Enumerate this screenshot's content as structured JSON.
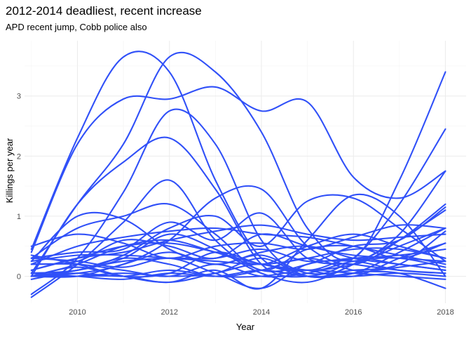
{
  "chart_data": {
    "type": "line",
    "title": "2012-2014 deadliest, recent increase",
    "subtitle": "APD recent jump, Cobb police also",
    "xlabel": "Year",
    "ylabel": "Killings per year",
    "xlim": [
      2008.85,
      2018.45
    ],
    "ylim": [
      -0.45,
      3.92
    ],
    "x_ticks": [
      2010,
      2012,
      2014,
      2016,
      2018
    ],
    "x_tick_labels": [
      "2010",
      "2012",
      "2014",
      "2016",
      "2018"
    ],
    "y_ticks": [
      0,
      1,
      2,
      3
    ],
    "y_tick_labels": [
      "0",
      "1",
      "2",
      "3"
    ],
    "grid": true,
    "legend": "none",
    "line_color": "#3050f8",
    "x": [
      2009,
      2010,
      2011,
      2012,
      2013,
      2014,
      2015,
      2016,
      2017,
      2018
    ],
    "series": [
      {
        "values": [
          0.45,
          2.3,
          3.65,
          3.4,
          1.6,
          0.3,
          0.1,
          0.3,
          0.2,
          0.1
        ]
      },
      {
        "values": [
          0.4,
          2.2,
          2.95,
          2.95,
          3.15,
          2.75,
          2.9,
          1.65,
          1.3,
          1.75
        ]
      },
      {
        "values": [
          0.05,
          1.2,
          2.2,
          3.65,
          3.4,
          2.4,
          0.8,
          0.3,
          1.6,
          3.4
        ]
      },
      {
        "values": [
          0.0,
          1.2,
          1.9,
          2.3,
          1.45,
          0.2,
          0.0,
          0.3,
          1.2,
          2.45
        ]
      },
      {
        "values": [
          -0.3,
          0.3,
          1.4,
          2.75,
          2.2,
          0.6,
          0.0,
          0.2,
          0.7,
          1.75
        ]
      },
      {
        "values": [
          -0.35,
          0.2,
          0.9,
          1.6,
          0.6,
          0.1,
          0.2,
          0.5,
          0.6,
          1.15
        ]
      },
      {
        "values": [
          0.25,
          1.0,
          0.95,
          0.45,
          0.2,
          0.35,
          0.05,
          0.1,
          0.2,
          0.75
        ]
      },
      {
        "values": [
          0.3,
          0.8,
          1.0,
          1.2,
          0.7,
          0.1,
          0.45,
          0.5,
          0.3,
          0.55
        ]
      },
      {
        "values": [
          0.0,
          0.05,
          0.2,
          0.6,
          1.3,
          1.45,
          0.5,
          0.2,
          0.6,
          1.2
        ]
      },
      {
        "values": [
          0.05,
          0.1,
          0.35,
          0.8,
          1.0,
          0.5,
          1.25,
          1.3,
          0.8,
          0.25
        ]
      },
      {
        "values": [
          0.0,
          0.0,
          0.0,
          -0.1,
          0.1,
          -0.2,
          0.6,
          1.35,
          1.0,
          0.0
        ]
      },
      {
        "values": [
          0.3,
          0.4,
          0.45,
          0.9,
          0.6,
          1.05,
          0.3,
          0.2,
          0.1,
          0.05
        ]
      },
      {
        "values": [
          0.5,
          0.7,
          0.55,
          0.3,
          0.5,
          0.55,
          0.45,
          0.65,
          0.85,
          0.8
        ]
      },
      {
        "values": [
          0.2,
          0.5,
          0.65,
          0.75,
          0.8,
          0.7,
          0.65,
          0.5,
          0.35,
          0.2
        ]
      },
      {
        "values": [
          0.1,
          0.3,
          0.4,
          0.6,
          0.75,
          0.85,
          0.7,
          0.6,
          0.65,
          0.7
        ]
      },
      {
        "values": [
          0.0,
          0.2,
          0.5,
          0.6,
          0.4,
          0.2,
          0.5,
          0.7,
          0.5,
          0.3
        ]
      },
      {
        "values": [
          0.25,
          0.35,
          0.35,
          0.3,
          0.25,
          0.2,
          0.3,
          0.45,
          0.45,
          0.3
        ]
      },
      {
        "values": [
          -0.05,
          0.1,
          0.25,
          0.3,
          0.3,
          0.45,
          0.25,
          0.3,
          0.35,
          0.45
        ]
      },
      {
        "values": [
          0.0,
          0.0,
          0.05,
          0.0,
          0.05,
          0.3,
          0.0,
          0.05,
          0.4,
          0.8
        ]
      },
      {
        "values": [
          0.2,
          0.2,
          0.1,
          0.0,
          0.2,
          0.0,
          0.05,
          0.25,
          0.3,
          0.15
        ]
      },
      {
        "values": [
          0.05,
          0.0,
          -0.05,
          0.05,
          0.0,
          0.1,
          0.0,
          0.0,
          0.05,
          0.0
        ]
      },
      {
        "values": [
          0.3,
          0.25,
          0.15,
          0.3,
          0.05,
          -0.2,
          0.2,
          0.25,
          0.1,
          0.05
        ]
      },
      {
        "values": [
          0.0,
          0.1,
          0.3,
          0.2,
          0.0,
          0.1,
          0.3,
          0.1,
          0.05,
          -0.2
        ]
      },
      {
        "values": [
          0.1,
          0.3,
          0.5,
          0.55,
          0.4,
          0.2,
          0.1,
          0.2,
          0.5,
          0.8
        ]
      },
      {
        "values": [
          0.0,
          0.0,
          0.2,
          0.4,
          0.2,
          0.4,
          0.5,
          0.3,
          0.2,
          0.1
        ]
      },
      {
        "values": [
          0.35,
          0.2,
          0.0,
          -0.1,
          0.05,
          0.2,
          0.0,
          0.05,
          0.15,
          0.25
        ]
      },
      {
        "values": [
          0.05,
          0.1,
          0.3,
          0.7,
          0.45,
          0.05,
          -0.1,
          0.2,
          0.6,
          1.1
        ]
      },
      {
        "values": [
          0.0,
          0.15,
          0.0,
          0.05,
          0.4,
          0.2,
          0.1,
          0.0,
          0.3,
          0.55
        ]
      },
      {
        "values": [
          0.2,
          0.25,
          0.6,
          0.5,
          0.3,
          0.7,
          0.5,
          0.35,
          0.3,
          0.25
        ]
      },
      {
        "values": [
          0.0,
          0.05,
          0.0,
          0.1,
          0.0,
          0.0,
          0.1,
          0.05,
          0.0,
          -0.05
        ]
      }
    ]
  }
}
